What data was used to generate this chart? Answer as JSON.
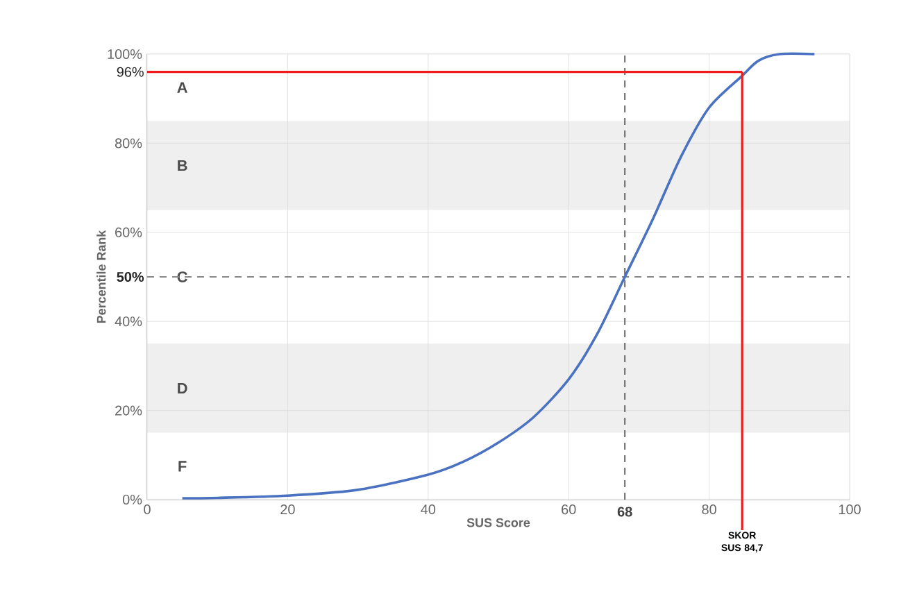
{
  "chart_data": {
    "type": "line",
    "xlabel": "SUS Score",
    "ylabel": "Percentile Rank",
    "xlim": [
      0,
      100
    ],
    "ylim": [
      0,
      100
    ],
    "xticks": [
      0,
      20,
      40,
      60,
      80,
      100
    ],
    "yticks": [
      {
        "value": 0,
        "label": "0%"
      },
      {
        "value": 20,
        "label": "20%"
      },
      {
        "value": 40,
        "label": "40%"
      },
      {
        "value": 60,
        "label": "60%"
      },
      {
        "value": 80,
        "label": "80%"
      },
      {
        "value": 100,
        "label": "100%"
      }
    ],
    "grid": true,
    "marker": "none",
    "line_style": "solid",
    "series": [
      {
        "color": "#4a72c0",
        "x": [
          5,
          10,
          20,
          30,
          40,
          45,
          50,
          55,
          60,
          64,
          68,
          72,
          76,
          80,
          84.6,
          87,
          90,
          95
        ],
        "values": [
          0.3,
          0.4,
          0.9,
          2.2,
          5.6,
          8.5,
          12.8,
          18.5,
          27,
          37,
          50,
          63,
          77,
          88,
          95,
          98.5,
          100,
          100
        ]
      }
    ],
    "bands": [
      {
        "axis": "y",
        "from": 85,
        "to": 100,
        "label": "A",
        "color": "#ffffff"
      },
      {
        "axis": "y",
        "from": 65,
        "to": 85,
        "label": "B",
        "color": "#efefef"
      },
      {
        "axis": "y",
        "from": 35,
        "to": 65,
        "label": "C",
        "color": "#ffffff"
      },
      {
        "axis": "y",
        "from": 15,
        "to": 35,
        "label": "D",
        "color": "#efefef"
      },
      {
        "axis": "y",
        "from": 0,
        "to": 15,
        "label": "F",
        "color": "#ffffff"
      }
    ],
    "ref_lines": [
      {
        "axis": "y",
        "value": 96,
        "label": "96%",
        "color": "#ee1c1c",
        "line_style": "solid"
      },
      {
        "axis": "x",
        "value": 84.7,
        "label": "SKOR SUS 84,7",
        "color": "#ee1c1c",
        "line_style": "solid"
      },
      {
        "axis": "y",
        "value": 50,
        "label": "50%",
        "color": "#888888",
        "line_style": "dashed"
      },
      {
        "axis": "x",
        "value": 68,
        "label": "68",
        "color": "#555555",
        "line_style": "dashed"
      }
    ]
  }
}
